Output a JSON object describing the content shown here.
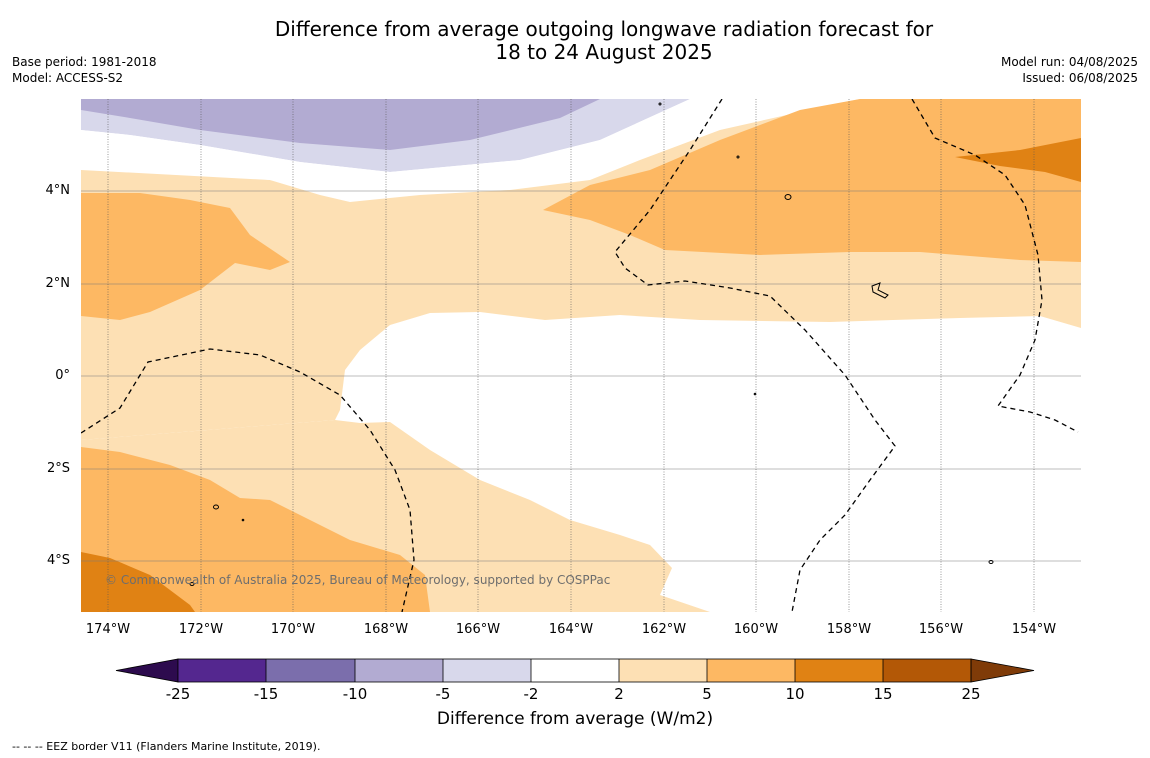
{
  "title_line1": "Difference from average outgoing longwave radiation forecast for",
  "title_line2": "18 to 24 August 2025",
  "base_period": "Base period: 1981-2018",
  "model": "Model: ACCESS-S2",
  "model_run": "Model run: 04/08/2025",
  "issued": "Issued: 06/08/2025",
  "copyright": "© Commonwealth of Australia 2025, Bureau of Meteorology, supported by COSPPac",
  "lat_labels": [
    "4°N",
    "2°N",
    "0°",
    "2°S",
    "4°S"
  ],
  "lon_labels": [
    "174°W",
    "172°W",
    "170°W",
    "168°W",
    "166°W",
    "164°W",
    "162°W",
    "160°W",
    "158°W",
    "156°W",
    "154°W"
  ],
  "colorbar": {
    "label": "Difference from average (W/m2)",
    "ticks": [
      "-25",
      "-15",
      "-10",
      "-5",
      "-2",
      "2",
      "5",
      "10",
      "15",
      "25"
    ],
    "colors": [
      "#2d0b4e",
      "#54278f",
      "#7b6eac",
      "#b2abd2",
      "#d8d8eb",
      "#ffffff",
      "#fde0b4",
      "#fdb863",
      "#e08214",
      "#b35806",
      "#7f3b08"
    ]
  },
  "footnote": "--  --  -- EEZ border V11 (Flanders Marine Institute, 2019)."
}
